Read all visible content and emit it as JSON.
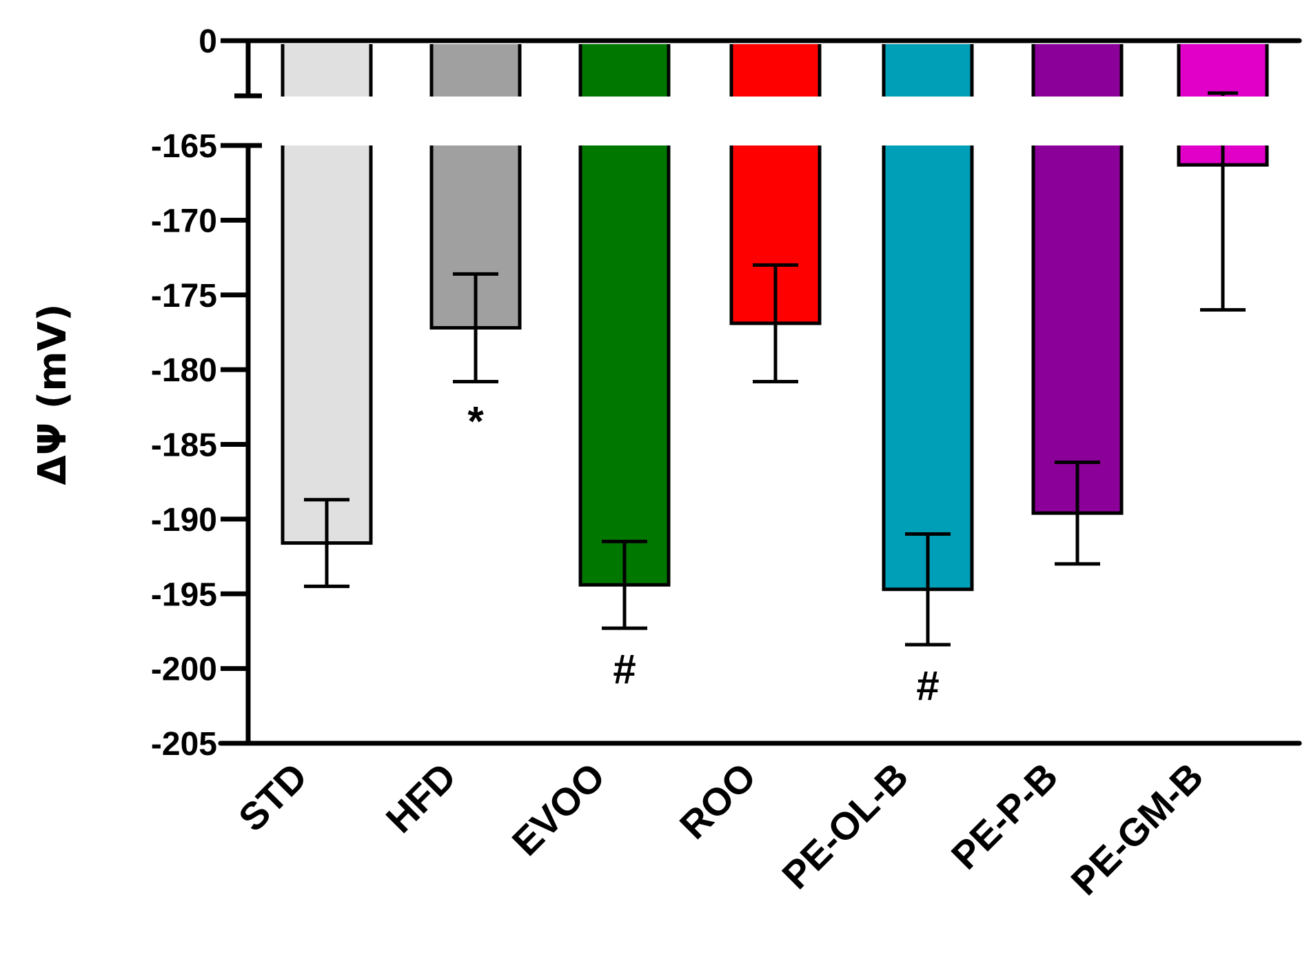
{
  "chart_data": {
    "type": "bar",
    "title": "",
    "xlabel": "",
    "ylabel": "ΔΨ (mV)",
    "ylim": [
      -205,
      0
    ],
    "axis_break": [
      -165,
      0
    ],
    "yticks": [
      0,
      -165,
      -170,
      -175,
      -180,
      -185,
      -190,
      -195,
      -200,
      -205
    ],
    "ytick_labels": [
      "0",
      "-165",
      "-170",
      "-175",
      "-180",
      "-185",
      "-190",
      "-195",
      "-200",
      "-205"
    ],
    "categories": [
      "STD",
      "HFD",
      "EVOO",
      "ROO",
      "PE-OL-B",
      "PE-P-B",
      "PE-GM-B"
    ],
    "values": [
      -191.6,
      -177.2,
      -194.4,
      -176.9,
      -194.7,
      -189.6,
      -166.3
    ],
    "error": [
      2.9,
      3.6,
      2.9,
      3.9,
      3.7,
      3.4,
      9.7
    ],
    "colors": [
      "#e0e0e0",
      "#a0a0a0",
      "#007800",
      "#ff0000",
      "#009fb8",
      "#8a0099",
      "#e000c8"
    ],
    "annotations": [
      {
        "category": "HFD",
        "text": "*"
      },
      {
        "category": "EVOO",
        "text": "#"
      },
      {
        "category": "PE-OL-B",
        "text": "#"
      }
    ]
  }
}
